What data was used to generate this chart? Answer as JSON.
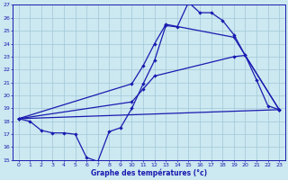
{
  "xlabel": "Graphe des températures (°c)",
  "xlim": [
    -0.5,
    23.5
  ],
  "ylim": [
    15,
    27
  ],
  "yticks": [
    15,
    16,
    17,
    18,
    19,
    20,
    21,
    22,
    23,
    24,
    25,
    26,
    27
  ],
  "xticks": [
    0,
    1,
    2,
    3,
    4,
    5,
    6,
    7,
    8,
    9,
    10,
    11,
    12,
    13,
    14,
    15,
    16,
    17,
    18,
    19,
    20,
    21,
    22,
    23
  ],
  "bg_color": "#cce8f0",
  "line_color": "#1a1ab0",
  "grid_color": "#a0c8d8",
  "series1_x": [
    0,
    1,
    2,
    3,
    4,
    5,
    6,
    7,
    8,
    9,
    10,
    11,
    12,
    13,
    14,
    15,
    16,
    17,
    18,
    19,
    20,
    21,
    22,
    23
  ],
  "series1_y": [
    18.2,
    18.0,
    17.3,
    17.1,
    17.1,
    17.0,
    15.2,
    14.9,
    17.2,
    17.5,
    19.0,
    20.9,
    22.7,
    25.4,
    25.3,
    27.2,
    26.4,
    26.4,
    25.8,
    24.7,
    23.1,
    21.2,
    19.2,
    18.9
  ],
  "series2_x": [
    0,
    10,
    11,
    12,
    13,
    19,
    23
  ],
  "series2_y": [
    18.2,
    20.9,
    22.3,
    24.0,
    25.5,
    24.5,
    18.9
  ],
  "series3_x": [
    0,
    10,
    11,
    12,
    19,
    20,
    23
  ],
  "series3_y": [
    18.2,
    19.5,
    20.5,
    21.5,
    23.0,
    23.1,
    18.9
  ],
  "series4_x": [
    0,
    23
  ],
  "series4_y": [
    18.2,
    18.9
  ]
}
